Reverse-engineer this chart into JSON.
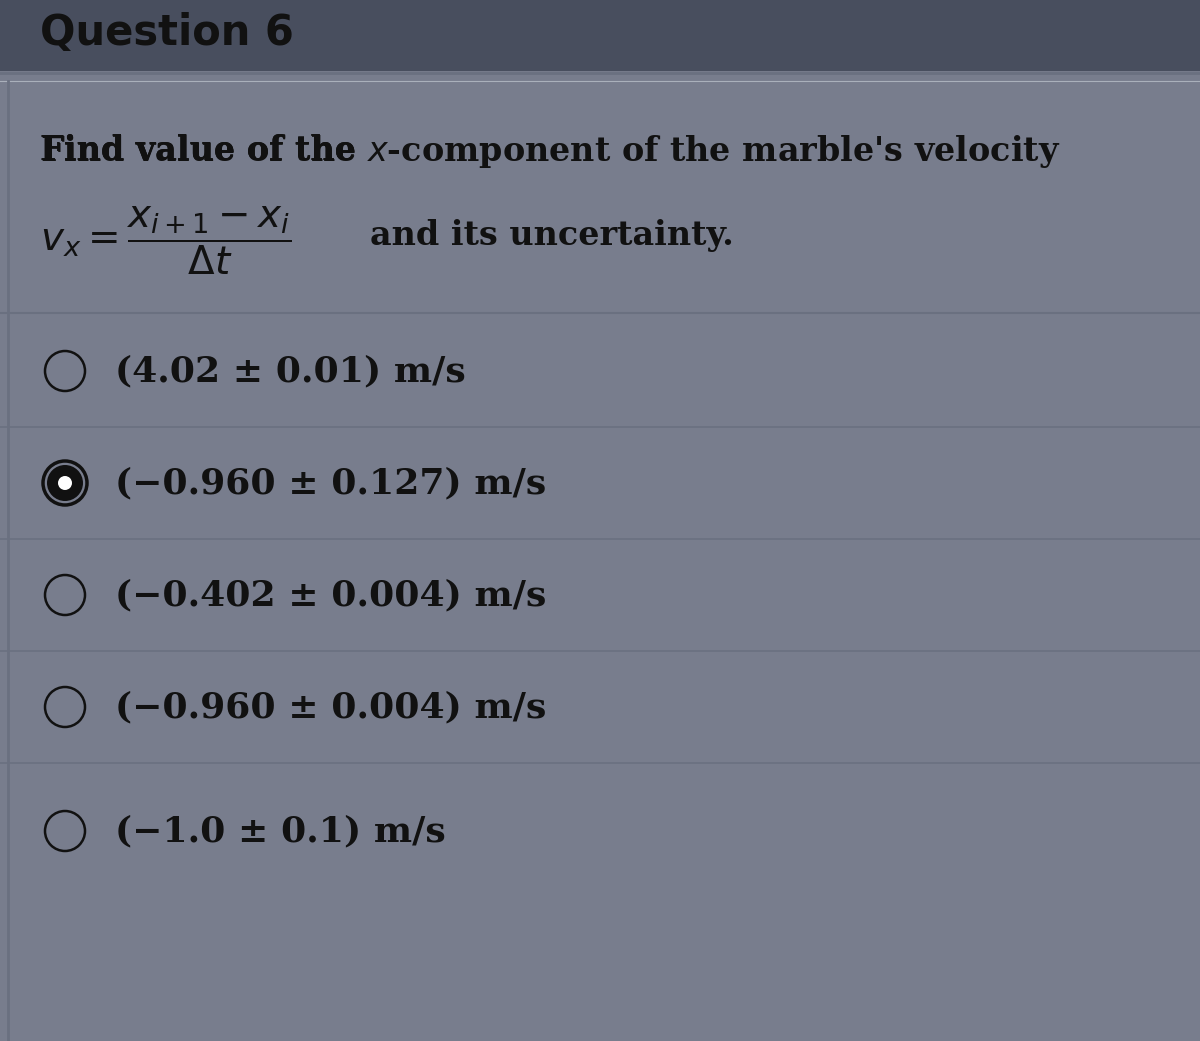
{
  "title": "Question 6",
  "title_bg_color": "#4a5060",
  "bg_color": "#7a8090",
  "content_bg_color": "#9aa0aa",
  "text_color": "#111111",
  "divider_color": "#6a7080",
  "question_text": "Find value of the x-component of the marble’s velocity",
  "options": [
    {
      "label": "(4.02 ± 0.01) m/s",
      "selected": false
    },
    {
      "label": "(−0.960 ± 0.127) m/s",
      "selected": true
    },
    {
      "label": "(−0.402 ± 0.004) m/s",
      "selected": false
    },
    {
      "label": "(−0.960 ± 0.004) m/s",
      "selected": false
    },
    {
      "label": "(−1.0 ± 0.1) m/s",
      "selected": false
    }
  ],
  "title_font_size": 30,
  "question_font_size": 24,
  "option_font_size": 26
}
